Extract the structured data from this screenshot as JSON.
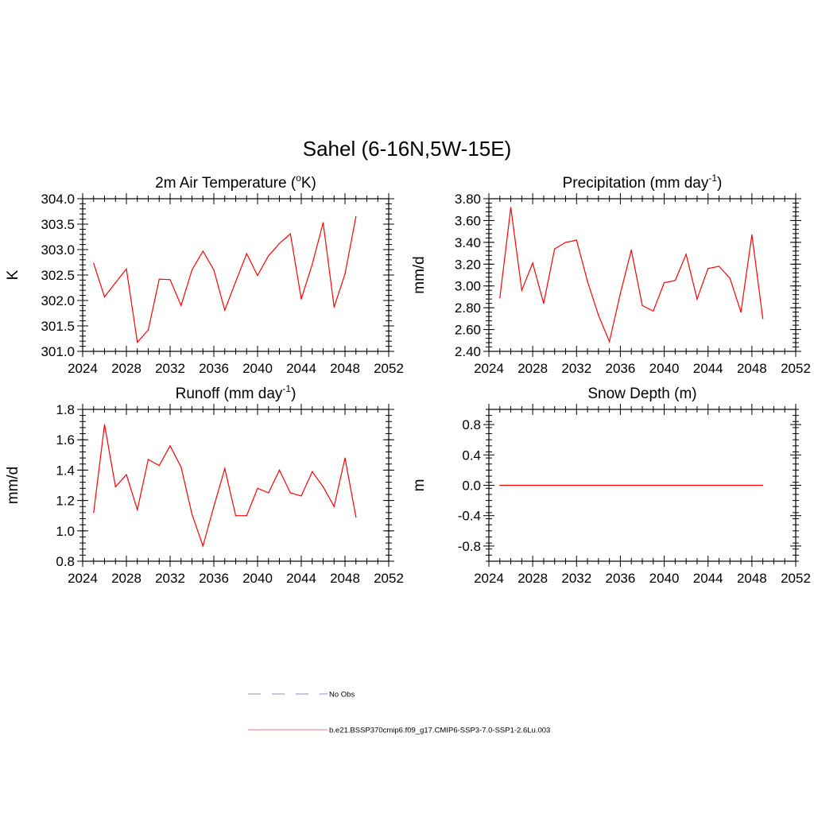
{
  "main_title": "Sahel (6-16N,5W-15E)",
  "line_color": "#ff0000",
  "chart_data": [
    {
      "type": "line",
      "title": "2m Air Temperature (°K)",
      "ylabel": "K",
      "xlim": [
        2024,
        2052
      ],
      "ylim": [
        301.0,
        304.0
      ],
      "xticks": [
        "2024",
        "2028",
        "2032",
        "2036",
        "2040",
        "2044",
        "2048",
        "2052"
      ],
      "yticks": [
        "301.0",
        "301.5",
        "302.0",
        "302.5",
        "303.0",
        "303.5",
        "304.0"
      ],
      "series": [
        {
          "x": [
            2025,
            2026,
            2027,
            2028,
            2029,
            2030,
            2031,
            2032,
            2033,
            2034,
            2035,
            2036,
            2037,
            2038,
            2039,
            2040,
            2041,
            2042,
            2043,
            2044,
            2045,
            2046,
            2047,
            2048,
            2049
          ],
          "values": [
            302.73,
            302.07,
            302.35,
            302.62,
            301.18,
            301.42,
            302.42,
            302.41,
            301.9,
            302.6,
            302.97,
            302.6,
            301.81,
            302.37,
            302.92,
            302.49,
            302.88,
            303.12,
            303.31,
            302.03,
            302.71,
            303.53,
            301.87,
            302.52,
            303.65
          ]
        }
      ]
    },
    {
      "type": "line",
      "title": "Precipitation (mm day-1)",
      "ylabel": "mm/d",
      "xlim": [
        2024,
        2052
      ],
      "ylim": [
        2.4,
        3.8
      ],
      "xticks": [
        "2024",
        "2028",
        "2032",
        "2036",
        "2040",
        "2044",
        "2048",
        "2052"
      ],
      "yticks": [
        "2.40",
        "2.60",
        "2.80",
        "3.00",
        "3.20",
        "3.40",
        "3.60",
        "3.80"
      ],
      "series": [
        {
          "x": [
            2025,
            2026,
            2027,
            2028,
            2029,
            2030,
            2031,
            2032,
            2033,
            2034,
            2035,
            2036,
            2037,
            2038,
            2039,
            2040,
            2041,
            2042,
            2043,
            2044,
            2045,
            2046,
            2047,
            2048,
            2049
          ],
          "values": [
            2.89,
            3.72,
            2.96,
            3.21,
            2.84,
            3.34,
            3.4,
            3.42,
            3.04,
            2.73,
            2.49,
            2.93,
            3.33,
            2.82,
            2.77,
            3.03,
            3.05,
            3.29,
            2.88,
            3.16,
            3.18,
            3.07,
            2.76,
            3.47,
            2.7
          ]
        }
      ]
    },
    {
      "type": "line",
      "title": "Runoff (mm day-1)",
      "ylabel": "mm/d",
      "xlim": [
        2024,
        2052
      ],
      "ylim": [
        0.8,
        1.8
      ],
      "xticks": [
        "2024",
        "2028",
        "2032",
        "2036",
        "2040",
        "2044",
        "2048",
        "2052"
      ],
      "yticks": [
        "0.8",
        "1.0",
        "1.2",
        "1.4",
        "1.6",
        "1.8"
      ],
      "series": [
        {
          "x": [
            2025,
            2026,
            2027,
            2028,
            2029,
            2030,
            2031,
            2032,
            2033,
            2034,
            2035,
            2036,
            2037,
            2038,
            2039,
            2040,
            2041,
            2042,
            2043,
            2044,
            2045,
            2046,
            2047,
            2048,
            2049
          ],
          "values": [
            1.12,
            1.7,
            1.29,
            1.37,
            1.14,
            1.47,
            1.43,
            1.56,
            1.42,
            1.11,
            0.9,
            1.16,
            1.41,
            1.1,
            1.1,
            1.28,
            1.25,
            1.4,
            1.25,
            1.23,
            1.39,
            1.29,
            1.16,
            1.48,
            1.09
          ]
        }
      ]
    },
    {
      "type": "line",
      "title": "Snow Depth (m)",
      "ylabel": "m",
      "xlim": [
        2024,
        2052
      ],
      "ylim": [
        -1.0,
        1.0
      ],
      "xticks": [
        "2024",
        "2028",
        "2032",
        "2036",
        "2040",
        "2044",
        "2048",
        "2052"
      ],
      "yticks": [
        "-0.8",
        "-0.4",
        "0.0",
        "0.4",
        "0.8"
      ],
      "ytick_values": [
        -0.8,
        -0.4,
        0.0,
        0.4,
        0.8
      ],
      "series": [
        {
          "x": [
            2025,
            2026,
            2027,
            2028,
            2029,
            2030,
            2031,
            2032,
            2033,
            2034,
            2035,
            2036,
            2037,
            2038,
            2039,
            2040,
            2041,
            2042,
            2043,
            2044,
            2045,
            2046,
            2047,
            2048,
            2049
          ],
          "values": [
            0,
            0,
            0,
            0,
            0,
            0,
            0,
            0,
            0,
            0,
            0,
            0,
            0,
            0,
            0,
            0,
            0,
            0,
            0,
            0,
            0,
            0,
            0,
            0,
            0
          ]
        }
      ]
    }
  ],
  "legend": [
    {
      "label": "No Obs",
      "color": "#a0a0e8",
      "style": "dashed"
    },
    {
      "label": "b.e21.BSSP370cmip6.f09_g17.CMIP6-SSP3-7.0-SSP1-2.6Lu.003",
      "color": "#ff9090",
      "style": "solid"
    }
  ]
}
